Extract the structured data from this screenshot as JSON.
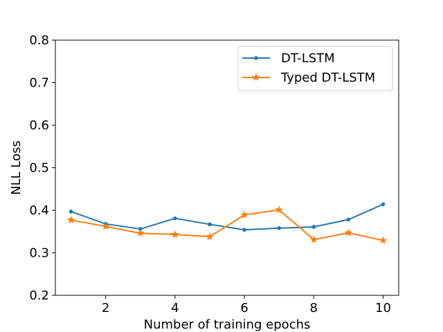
{
  "chart_data": {
    "type": "line",
    "title": "",
    "xlabel": "Number of training epochs",
    "ylabel": "NLL Loss",
    "xlim": [
      0.55,
      10.45
    ],
    "ylim": [
      0.2,
      0.8
    ],
    "xticks": [
      2,
      4,
      6,
      8,
      10
    ],
    "xtick_labels": [
      "2",
      "4",
      "6",
      "8",
      "10"
    ],
    "yticks": [
      0.2,
      0.3,
      0.4,
      0.5,
      0.6,
      0.7,
      0.8
    ],
    "ytick_labels": [
      "0.2",
      "0.3",
      "0.4",
      "0.5",
      "0.6",
      "0.7",
      "0.8"
    ],
    "grid": false,
    "legend_position": "top-right",
    "x": [
      1,
      2,
      3,
      4,
      5,
      6,
      7,
      8,
      9,
      10
    ],
    "series": [
      {
        "name": "DT-LSTM",
        "color": "#1f77b4",
        "marker": "circle",
        "values": [
          0.397,
          0.368,
          0.356,
          0.381,
          0.367,
          0.354,
          0.358,
          0.361,
          0.378,
          0.414
        ]
      },
      {
        "name": "Typed DT-LSTM",
        "color": "#ff7f0e",
        "marker": "star",
        "values": [
          0.377,
          0.362,
          0.346,
          0.343,
          0.338,
          0.389,
          0.401,
          0.331,
          0.347,
          0.329
        ]
      }
    ]
  }
}
